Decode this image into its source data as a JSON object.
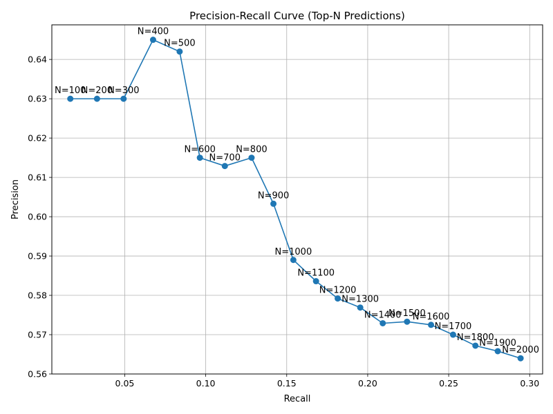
{
  "chart_data": {
    "type": "line",
    "title": "Precision-Recall Curve (Top-N Predictions)",
    "xlabel": "Recall",
    "ylabel": "Precision",
    "xlim": [
      0.005,
      0.308
    ],
    "ylim": [
      0.56,
      0.6488
    ],
    "xticks": [
      0.05,
      0.1,
      0.15,
      0.2,
      0.25,
      0.3
    ],
    "xtick_labels": [
      "0.05",
      "0.10",
      "0.15",
      "0.20",
      "0.25",
      "0.30"
    ],
    "yticks": [
      0.56,
      0.57,
      0.58,
      0.59,
      0.6,
      0.61,
      0.62,
      0.63,
      0.64
    ],
    "ytick_labels": [
      "0.56",
      "0.57",
      "0.58",
      "0.59",
      "0.60",
      "0.61",
      "0.62",
      "0.63",
      "0.64"
    ],
    "grid": true,
    "marker": "circle",
    "color": "#1f77b4",
    "points": [
      {
        "label": "N=100",
        "x": 0.0164,
        "y": 0.63
      },
      {
        "label": "N=200",
        "x": 0.0329,
        "y": 0.63
      },
      {
        "label": "N=300",
        "x": 0.0493,
        "y": 0.63
      },
      {
        "label": "N=400",
        "x": 0.0675,
        "y": 0.645
      },
      {
        "label": "N=500",
        "x": 0.0839,
        "y": 0.642
      },
      {
        "label": "N=600",
        "x": 0.0964,
        "y": 0.615
      },
      {
        "label": "N=700",
        "x": 0.1118,
        "y": 0.6129
      },
      {
        "label": "N=800",
        "x": 0.1283,
        "y": 0.615
      },
      {
        "label": "N=900",
        "x": 0.1418,
        "y": 0.6033
      },
      {
        "label": "N=1000",
        "x": 0.1541,
        "y": 0.589
      },
      {
        "label": "N=1100",
        "x": 0.1681,
        "y": 0.5836
      },
      {
        "label": "N=1200",
        "x": 0.1815,
        "y": 0.5792
      },
      {
        "label": "N=1300",
        "x": 0.1954,
        "y": 0.5769
      },
      {
        "label": "N=1400",
        "x": 0.2093,
        "y": 0.5729
      },
      {
        "label": "N=1500",
        "x": 0.2243,
        "y": 0.5733
      },
      {
        "label": "N=1600",
        "x": 0.2391,
        "y": 0.5725
      },
      {
        "label": "N=1700",
        "x": 0.2527,
        "y": 0.57
      },
      {
        "label": "N=1800",
        "x": 0.2665,
        "y": 0.5672
      },
      {
        "label": "N=1900",
        "x": 0.2803,
        "y": 0.5658
      },
      {
        "label": "N=2000",
        "x": 0.2944,
        "y": 0.564
      }
    ]
  }
}
